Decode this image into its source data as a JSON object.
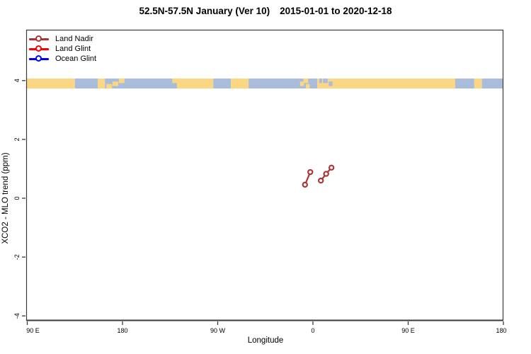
{
  "colors": {
    "background": "#FFFFFF",
    "axis": "#3A3A3A",
    "text": "#000000",
    "land_nadir": "#AE3434",
    "land_glint": "#FF0000",
    "ocean_glint": "#0000FF",
    "strip_land": "#FBD683",
    "strip_ocean": "#A9BDDA"
  },
  "title": {
    "range_label": "52.5N-57.5N January (Ver 10)",
    "date_label": "2015-01-01 to 2020-12-18"
  },
  "legend": {
    "items": [
      {
        "label": "Land Nadir",
        "color": "#AE3434"
      },
      {
        "label": "Land Glint",
        "color": "#FF0000"
      },
      {
        "label": "Ocean Glint",
        "color": "#0000FF"
      }
    ]
  },
  "chart_data": {
    "type": "line",
    "title": "52.5N-57.5N January (Ver 10)  2015-01-01 to 2020-12-18",
    "xlabel": "Longitude",
    "ylabel": "XCO2 - MLO trend (ppm)",
    "grid": false,
    "legend_position": "top-left",
    "x_axis": {
      "min": -270,
      "max": 180,
      "wraparound": "axis spans 90E→180→90W→0→90E→180",
      "ticks": [
        {
          "value": -270,
          "label": "90 E"
        },
        {
          "value": -180,
          "label": "180"
        },
        {
          "value": -90,
          "label": "90 W"
        },
        {
          "value": 0,
          "label": "0"
        },
        {
          "value": 90,
          "label": "90 E"
        },
        {
          "value": 180,
          "label": "180"
        }
      ]
    },
    "y_axis": {
      "min": -4.16,
      "max": 5.73,
      "ticks": [
        {
          "value": -4,
          "label": "-4"
        },
        {
          "value": -2,
          "label": "-2"
        },
        {
          "value": 0,
          "label": "0"
        },
        {
          "value": 2,
          "label": "2"
        },
        {
          "value": 4,
          "label": "4"
        }
      ]
    },
    "series": [
      {
        "name": "Land Nadir",
        "color": "#AE3434",
        "marker": "open-circle",
        "segments": [
          [
            [
              -7.5,
              0.46
            ],
            [
              -2.5,
              0.89
            ]
          ],
          [
            [
              7.5,
              0.6
            ],
            [
              12.5,
              0.83
            ],
            [
              17.5,
              1.04
            ]
          ]
        ]
      },
      {
        "name": "Land Glint",
        "color": "#FF0000",
        "marker": "open-circle",
        "segments": []
      },
      {
        "name": "Ocean Glint",
        "color": "#0000FF",
        "marker": "open-circle",
        "segments": []
      }
    ],
    "map_strip": {
      "description": "land/ocean mini-map of the 52.5N-57.5N latitude band",
      "value_top": 4.07,
      "value_bottom": 3.73,
      "land_color": "#FBD683",
      "ocean_color": "#A9BDDA",
      "segments": [
        {
          "from": 0.0,
          "to": 0.102,
          "type": "land"
        },
        {
          "from": 0.102,
          "to": 0.15,
          "type": "ocean"
        },
        {
          "from": 0.15,
          "to": 0.165,
          "type": "land"
        },
        {
          "from": 0.165,
          "to": 0.316,
          "type": "ocean"
        },
        {
          "from": 0.316,
          "to": 0.392,
          "type": "land"
        },
        {
          "from": 0.392,
          "to": 0.429,
          "type": "ocean"
        },
        {
          "from": 0.429,
          "to": 0.466,
          "type": "land"
        },
        {
          "from": 0.466,
          "to": 0.61,
          "type": "ocean"
        },
        {
          "from": 0.61,
          "to": 0.899,
          "type": "land"
        },
        {
          "from": 0.899,
          "to": 0.939,
          "type": "ocean"
        },
        {
          "from": 0.939,
          "to": 0.955,
          "type": "land"
        },
        {
          "from": 0.955,
          "to": 1.0,
          "type": "ocean"
        }
      ],
      "patches": [
        {
          "x": 0.104,
          "w": 0.008,
          "pos": "top",
          "type": "ocean"
        },
        {
          "x": 0.168,
          "w": 0.012,
          "pos": "bottom",
          "type": "land"
        },
        {
          "x": 0.181,
          "w": 0.012,
          "pos": "mid",
          "type": "land"
        },
        {
          "x": 0.194,
          "w": 0.012,
          "pos": "top",
          "type": "land"
        },
        {
          "x": 0.306,
          "w": 0.01,
          "pos": "top",
          "type": "land"
        },
        {
          "x": 0.574,
          "w": 0.008,
          "pos": "mid",
          "type": "land"
        },
        {
          "x": 0.581,
          "w": 0.01,
          "pos": "top",
          "type": "land"
        },
        {
          "x": 0.586,
          "w": 0.008,
          "pos": "bottom",
          "type": "land"
        },
        {
          "x": 0.614,
          "w": 0.006,
          "pos": "top",
          "type": "ocean"
        },
        {
          "x": 0.622,
          "w": 0.01,
          "pos": "top",
          "type": "ocean"
        },
        {
          "x": 0.634,
          "w": 0.008,
          "pos": "mid",
          "type": "ocean"
        }
      ]
    }
  }
}
